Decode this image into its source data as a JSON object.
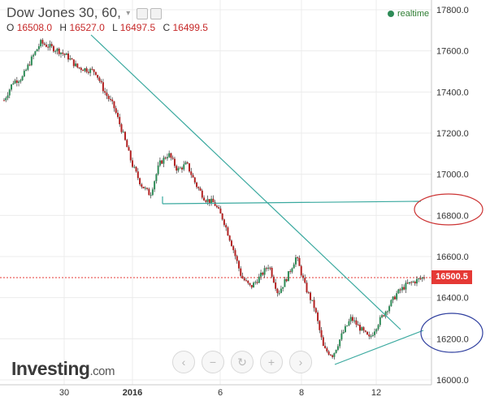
{
  "header": {
    "title": "Dow Jones 30, 60,",
    "ohlc_labels": [
      "O",
      "H",
      "L",
      "C"
    ],
    "ohlc_values": [
      "16508.0",
      "16527.0",
      "16497.5",
      "16499.5"
    ],
    "realtime_label": "realtime"
  },
  "logo": {
    "brand": "Investing",
    "suffix": ".com"
  },
  "nav_buttons": [
    {
      "name": "scroll-left",
      "glyph": "‹"
    },
    {
      "name": "zoom-out",
      "glyph": "−"
    },
    {
      "name": "reset",
      "glyph": "↻"
    },
    {
      "name": "zoom-in",
      "glyph": "+"
    },
    {
      "name": "scroll-right",
      "glyph": "›"
    }
  ],
  "colors": {
    "up": "#2e8b57",
    "down": "#b22222",
    "trendline": "#3aa99f",
    "ellipse_red": "#cc3333",
    "ellipse_blue": "#2f3f9f",
    "price_tag": "#e53935"
  },
  "chart_data": {
    "type": "candlestick",
    "y_ticks": [
      "16000.0",
      "16200.0",
      "16400.0",
      "16600.0",
      "16800.0",
      "17000.0",
      "17200.0",
      "17400.0",
      "17600.0",
      "17800.0"
    ],
    "x_ticks": [
      "30",
      "2016",
      "6",
      "8",
      "12"
    ],
    "ylim": [
      16000,
      17850
    ],
    "current_price": "16500.5",
    "series": [
      {
        "x": 0,
        "y": 17360
      },
      {
        "x": 2,
        "y": 17450
      },
      {
        "x": 4,
        "y": 17470
      },
      {
        "x": 6,
        "y": 17560
      },
      {
        "x": 8,
        "y": 17640
      },
      {
        "x": 10,
        "y": 17620
      },
      {
        "x": 12,
        "y": 17600
      },
      {
        "x": 14,
        "y": 17570
      },
      {
        "x": 16,
        "y": 17520
      },
      {
        "x": 18,
        "y": 17510
      },
      {
        "x": 20,
        "y": 17500
      },
      {
        "x": 22,
        "y": 17400
      },
      {
        "x": 24,
        "y": 17330
      },
      {
        "x": 26,
        "y": 17200
      },
      {
        "x": 28,
        "y": 17050
      },
      {
        "x": 30,
        "y": 16950
      },
      {
        "x": 32,
        "y": 16900
      },
      {
        "x": 34,
        "y": 17050
      },
      {
        "x": 36,
        "y": 17100
      },
      {
        "x": 38,
        "y": 17020
      },
      {
        "x": 40,
        "y": 17050
      },
      {
        "x": 42,
        "y": 16950
      },
      {
        "x": 44,
        "y": 16880
      },
      {
        "x": 46,
        "y": 16860
      },
      {
        "x": 48,
        "y": 16780
      },
      {
        "x": 50,
        "y": 16650
      },
      {
        "x": 52,
        "y": 16500
      },
      {
        "x": 54,
        "y": 16450
      },
      {
        "x": 56,
        "y": 16500
      },
      {
        "x": 58,
        "y": 16560
      },
      {
        "x": 60,
        "y": 16420
      },
      {
        "x": 62,
        "y": 16500
      },
      {
        "x": 64,
        "y": 16600
      },
      {
        "x": 66,
        "y": 16450
      },
      {
        "x": 68,
        "y": 16350
      },
      {
        "x": 70,
        "y": 16150
      },
      {
        "x": 72,
        "y": 16120
      },
      {
        "x": 74,
        "y": 16220
      },
      {
        "x": 76,
        "y": 16300
      },
      {
        "x": 78,
        "y": 16250
      },
      {
        "x": 80,
        "y": 16200
      },
      {
        "x": 82,
        "y": 16280
      },
      {
        "x": 84,
        "y": 16350
      },
      {
        "x": 86,
        "y": 16420
      },
      {
        "x": 88,
        "y": 16460
      },
      {
        "x": 90,
        "y": 16480
      },
      {
        "x": 92,
        "y": 16500
      }
    ]
  }
}
